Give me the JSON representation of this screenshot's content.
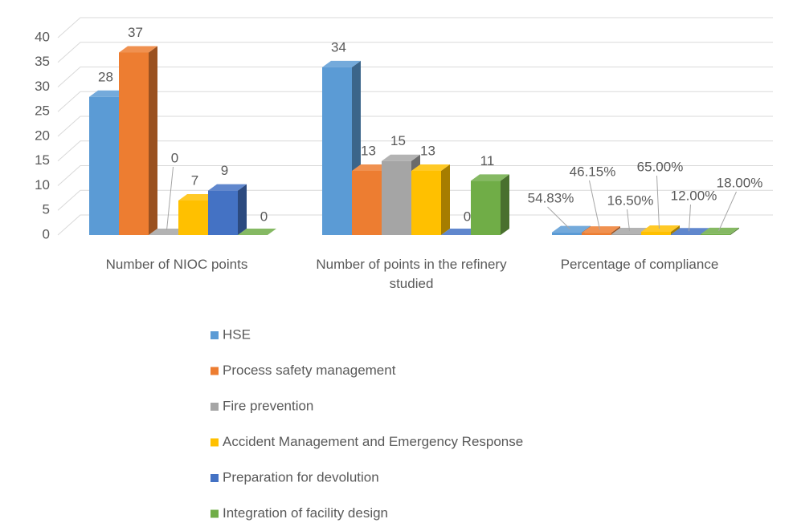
{
  "chart_data": {
    "type": "bar3d",
    "categories": [
      "Number of NIOC points",
      "Number of points in the refinery studied",
      "Percentage of compliance"
    ],
    "series": [
      {
        "name": "HSE",
        "color": "#5b9bd5",
        "values": [
          28,
          34,
          0.5483
        ],
        "value_labels": [
          "28",
          "34",
          "54.83%"
        ]
      },
      {
        "name": "Process safety management",
        "color": "#ed7d31",
        "values": [
          37,
          13,
          0.4615
        ],
        "value_labels": [
          "37",
          "13",
          "46.15%"
        ]
      },
      {
        "name": "Fire prevention",
        "color": "#a5a5a5",
        "values": [
          0,
          15,
          0.165
        ],
        "value_labels": [
          "0",
          "15",
          "16.50%"
        ]
      },
      {
        "name": "Accident Management and Emergency Response",
        "color": "#ffc000",
        "values": [
          7,
          13,
          0.65
        ],
        "value_labels": [
          "7",
          "13",
          "65.00%"
        ]
      },
      {
        "name": "Preparation for devolution",
        "color": "#4472c4",
        "values": [
          9,
          0,
          0.12
        ],
        "value_labels": [
          "9",
          "0",
          "12.00%"
        ]
      },
      {
        "name": "Integration of facility design",
        "color": "#70ad47",
        "values": [
          0,
          11,
          0.18
        ],
        "value_labels": [
          "0",
          "11",
          "18.00%"
        ]
      }
    ],
    "ylim": [
      0,
      40
    ],
    "yticks": [
      0,
      5,
      10,
      15,
      20,
      25,
      30,
      35,
      40
    ],
    "grid": true,
    "legend": "bottom"
  }
}
